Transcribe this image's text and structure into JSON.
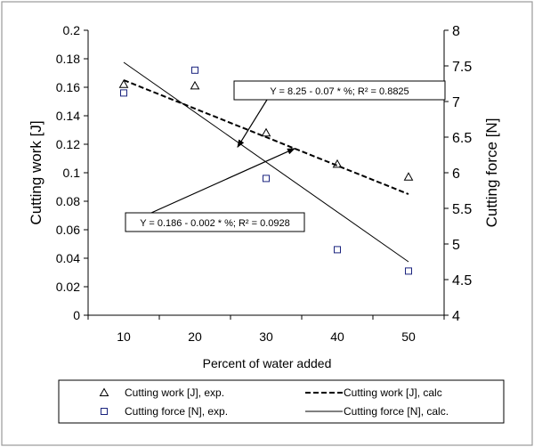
{
  "chart_data": {
    "type": "scatter",
    "x": [
      10,
      20,
      30,
      40,
      50
    ],
    "xlabel": "Percent of water added",
    "xlim": [
      5,
      55
    ],
    "x_ticks": [
      "10",
      "20",
      "30",
      "40",
      "50"
    ],
    "ylabel_left": "Cutting work [J]",
    "ylim_left": [
      0,
      0.2
    ],
    "y_ticks_left": [
      "0",
      "0.02",
      "0.04",
      "0.06",
      "0.08",
      "0.1",
      "0.12",
      "0.14",
      "0.16",
      "0.18",
      "0.2"
    ],
    "ylabel_right": "Cutting force [N]",
    "ylim_right": [
      4,
      8
    ],
    "y_ticks_right": [
      "4",
      "4.5",
      "5",
      "5.5",
      "6",
      "6.5",
      "7",
      "7.5",
      "8"
    ],
    "series": [
      {
        "name": "Cutting work [J], exp.",
        "axis": "left",
        "marker": "triangle",
        "values": [
          0.162,
          0.161,
          0.128,
          0.106,
          0.097
        ]
      },
      {
        "name": "Cutting force [N], exp.",
        "axis": "right",
        "marker": "square",
        "values": [
          7.12,
          7.44,
          5.92,
          4.92,
          4.62
        ]
      },
      {
        "name": "Cutting work [J], calc",
        "axis": "left",
        "style": "dashed",
        "x": [
          10,
          50
        ],
        "values": [
          0.165,
          0.085
        ]
      },
      {
        "name": "Cutting force [N], calc.",
        "axis": "right",
        "style": "solid",
        "x": [
          10,
          50
        ],
        "values": [
          7.55,
          4.75
        ]
      }
    ],
    "annotations": [
      {
        "text": "Y = 8.25 - 0.07 * %; R² = 0.8825",
        "arrow_to": [
          26,
          0.118
        ]
      },
      {
        "text": "Y = 0.186 - 0.002 * %; R² = 0.0928",
        "arrow_to": [
          34,
          0.117
        ]
      }
    ],
    "grid": false,
    "legend_position": "bottom"
  }
}
